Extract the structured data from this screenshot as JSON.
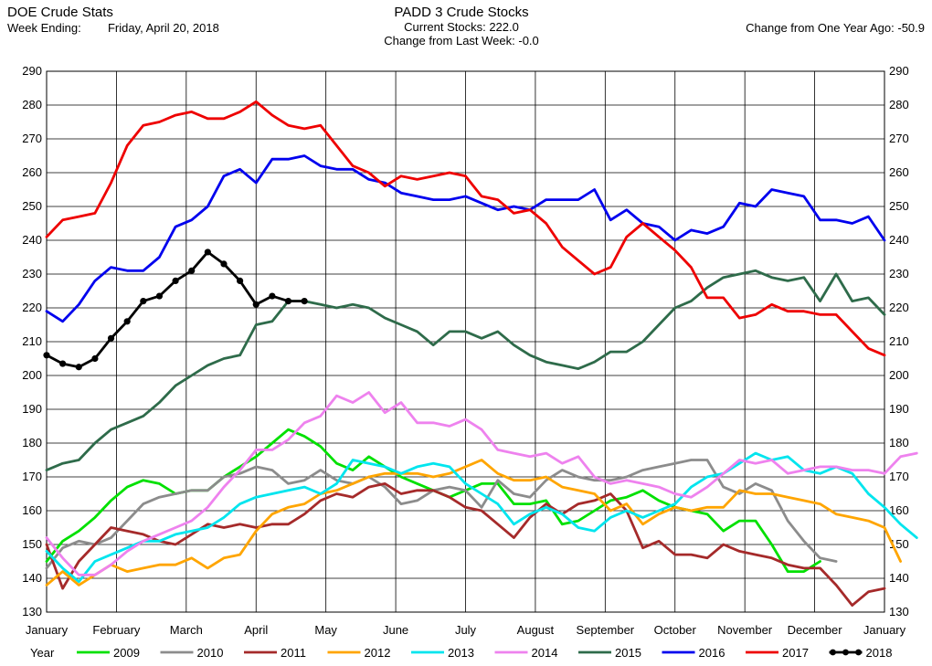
{
  "header": {
    "title": "DOE Crude Stats",
    "week_label": "Week Ending:",
    "week_date": "Friday, April 20, 2018",
    "chart_title": "PADD 3 Crude Stocks",
    "current_stocks": "Current Stocks: 222.0",
    "change_week": "Change from Last Week: -0.0",
    "change_year": "Change from One Year Ago: -50.9"
  },
  "chart_data": {
    "type": "line",
    "title": "PADD 3 Crude Stocks",
    "ylim": [
      130,
      290
    ],
    "yticks": [
      130,
      140,
      150,
      160,
      170,
      180,
      190,
      200,
      210,
      220,
      230,
      240,
      250,
      260,
      270,
      280,
      290
    ],
    "xlim": [
      1,
      53
    ],
    "month_labels": [
      "January",
      "February",
      "March",
      "April",
      "May",
      "June",
      "July",
      "August",
      "September",
      "October",
      "November",
      "December",
      "January"
    ],
    "grid": true,
    "legend_title": "Year",
    "legend_position": "bottom",
    "series": [
      {
        "name": "2009",
        "color": "#00e000",
        "values": [
          145,
          151,
          154,
          158,
          163,
          167,
          169,
          168,
          165,
          166,
          166,
          170,
          173,
          176,
          180,
          184,
          182,
          179,
          174,
          172,
          176,
          173,
          170,
          168,
          166,
          164,
          166,
          168,
          168,
          162,
          162,
          163,
          156,
          157,
          160,
          163,
          164,
          166,
          163,
          161,
          160,
          159,
          154,
          157,
          157,
          150,
          142,
          142,
          145
        ]
      },
      {
        "name": "2010",
        "color": "#8c8c8c",
        "values": [
          143,
          149,
          151,
          150,
          152,
          157,
          162,
          164,
          165,
          166,
          166,
          170,
          171,
          173,
          172,
          168,
          169,
          172,
          169,
          168,
          170,
          167,
          162,
          163,
          166,
          167,
          166,
          161,
          169,
          165,
          164,
          169,
          172,
          170,
          169,
          169,
          170,
          172,
          173,
          174,
          175,
          175,
          167,
          165,
          168,
          166,
          157,
          151,
          146,
          145
        ]
      },
      {
        "name": "2011",
        "color": "#a52a2a",
        "values": [
          150,
          137,
          145,
          150,
          155,
          154,
          153,
          151,
          150,
          153,
          156,
          155,
          156,
          155,
          156,
          156,
          159,
          163,
          165,
          164,
          167,
          168,
          165,
          166,
          166,
          164,
          161,
          160,
          156,
          152,
          158,
          162,
          159,
          162,
          163,
          165,
          160,
          149,
          151,
          147,
          147,
          146,
          150,
          148,
          147,
          146,
          144,
          143,
          143,
          138,
          132,
          136,
          137
        ]
      },
      {
        "name": "2012",
        "color": "#ffa500",
        "values": [
          138,
          142,
          138,
          141,
          144,
          142,
          143,
          144,
          144,
          146,
          143,
          146,
          147,
          154,
          159,
          161,
          162,
          165,
          166,
          168,
          170,
          171,
          171,
          171,
          170,
          171,
          173,
          175,
          171,
          169,
          169,
          170,
          167,
          166,
          165,
          160,
          162,
          156,
          159,
          161,
          160,
          161,
          161,
          166,
          165,
          165,
          164,
          163,
          162,
          159,
          158,
          157,
          155,
          145
        ]
      },
      {
        "name": "2013",
        "color": "#00e5ee",
        "values": [
          148,
          143,
          139,
          145,
          147,
          149,
          151,
          151,
          153,
          154,
          155,
          158,
          162,
          164,
          165,
          166,
          167,
          165,
          168,
          175,
          174,
          173,
          171,
          173,
          174,
          173,
          168,
          165,
          162,
          156,
          159,
          161,
          159,
          155,
          154,
          158,
          160,
          158,
          160,
          162,
          167,
          170,
          171,
          174,
          177,
          175,
          176,
          172,
          171,
          173,
          171,
          165,
          161,
          156,
          152
        ]
      },
      {
        "name": "2014",
        "color": "#ee82ee",
        "values": [
          152,
          146,
          141,
          141,
          144,
          148,
          151,
          153,
          155,
          157,
          161,
          167,
          172,
          178,
          178,
          181,
          186,
          188,
          194,
          192,
          195,
          189,
          192,
          186,
          186,
          185,
          187,
          184,
          178,
          177,
          176,
          177,
          174,
          176,
          170,
          168,
          169,
          168,
          167,
          165,
          164,
          167,
          171,
          175,
          174,
          175,
          171,
          172,
          173,
          173,
          172,
          172,
          171,
          176,
          177
        ]
      },
      {
        "name": "2015",
        "color": "#2e6b4a",
        "values": [
          172,
          174,
          175,
          180,
          184,
          186,
          188,
          192,
          197,
          200,
          203,
          205,
          206,
          215,
          216,
          222,
          222,
          221,
          220,
          221,
          220,
          217,
          215,
          213,
          209,
          213,
          213,
          211,
          213,
          209,
          206,
          204,
          203,
          202,
          204,
          207,
          207,
          210,
          215,
          220,
          222,
          226,
          229,
          230,
          231,
          229,
          228,
          229,
          222,
          230,
          222,
          223,
          218
        ]
      },
      {
        "name": "2016",
        "color": "#0000ee",
        "values": [
          219,
          216,
          221,
          228,
          232,
          231,
          231,
          235,
          244,
          246,
          250,
          259,
          261,
          257,
          264,
          264,
          265,
          262,
          261,
          261,
          258,
          257,
          254,
          253,
          252,
          252,
          253,
          251,
          249,
          250,
          249,
          252,
          252,
          252,
          255,
          246,
          249,
          245,
          244,
          240,
          243,
          242,
          244,
          251,
          250,
          255,
          254,
          253,
          246,
          246,
          245,
          247,
          240
        ]
      },
      {
        "name": "2017",
        "color": "#ee0000",
        "values": [
          241,
          246,
          247,
          248,
          257,
          268,
          274,
          275,
          277,
          278,
          276,
          276,
          278,
          281,
          277,
          274,
          273,
          274,
          268,
          262,
          260,
          256,
          259,
          258,
          259,
          260,
          259,
          253,
          252,
          248,
          249,
          245,
          238,
          234,
          230,
          232,
          241,
          245,
          241,
          237,
          232,
          223,
          223,
          217,
          218,
          221,
          219,
          219,
          218,
          218,
          213,
          208,
          206
        ]
      },
      {
        "name": "2018",
        "color": "#000000",
        "values": [
          206,
          203.5,
          202.5,
          205,
          211,
          216,
          222,
          223.5,
          228,
          231,
          236.5,
          233,
          228,
          221,
          223.5,
          222,
          222
        ]
      }
    ]
  }
}
